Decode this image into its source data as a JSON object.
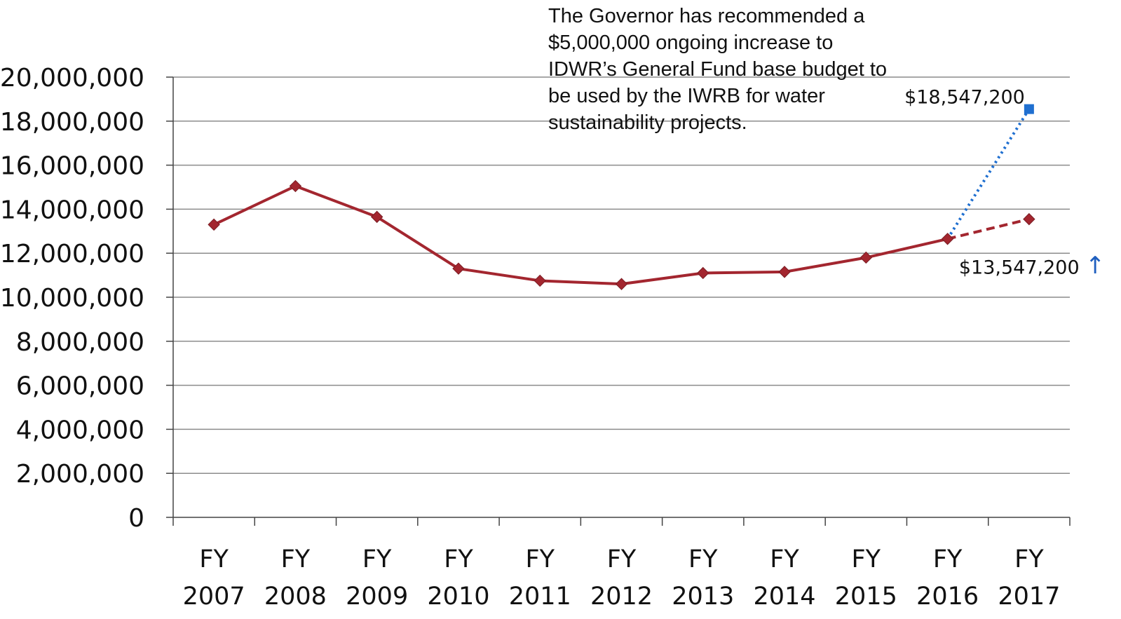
{
  "chart_data": {
    "type": "line",
    "categories": [
      [
        "FY",
        "2007"
      ],
      [
        "FY",
        "2008"
      ],
      [
        "FY",
        "2009"
      ],
      [
        "FY",
        "2010"
      ],
      [
        "FY",
        "2011"
      ],
      [
        "FY",
        "2012"
      ],
      [
        "FY",
        "2013"
      ],
      [
        "FY",
        "2014"
      ],
      [
        "FY",
        "2015"
      ],
      [
        "FY",
        "2016"
      ],
      [
        "FY",
        "2017"
      ]
    ],
    "ylim": [
      0,
      20000000
    ],
    "yticks": [
      "0",
      "2,000,000",
      "4,000,000",
      "6,000,000",
      "8,000,000",
      "10,000,000",
      "12,000,000",
      "14,000,000",
      "16,000,000",
      "18,000,000",
      "20,000,000"
    ],
    "grid": true,
    "series": [
      {
        "style": "solid",
        "color": "#a3262f",
        "marker": "diamond",
        "values": [
          13300000,
          15050000,
          13650000,
          11300000,
          10750000,
          10600000,
          11100000,
          11150000,
          11800000,
          12650000,
          null
        ]
      },
      {
        "style": "dashed",
        "color": "#a3262f",
        "marker": "diamond",
        "values": [
          null,
          null,
          null,
          null,
          null,
          null,
          null,
          null,
          null,
          12650000,
          13547200
        ]
      },
      {
        "style": "dotted",
        "color": "#1f6fd0",
        "marker": "square",
        "values": [
          null,
          null,
          null,
          null,
          null,
          null,
          null,
          null,
          null,
          12650000,
          18547200
        ]
      }
    ],
    "data_labels": [
      {
        "text": "$18,547,200",
        "category_index": 10,
        "value": 18547200
      },
      {
        "text": "$13,547,200",
        "category_index": 10,
        "value": 13547200
      }
    ],
    "annotation": {
      "lines": [
        "The Governor has recommended a",
        "$5,000,000 ongoing increase to",
        "IDWR’s General Fund base budget to",
        "be used by the IWRB for water",
        "sustainability projects."
      ]
    },
    "arrow_glyph": "↑",
    "arrow_color": "#1f5fbf"
  }
}
